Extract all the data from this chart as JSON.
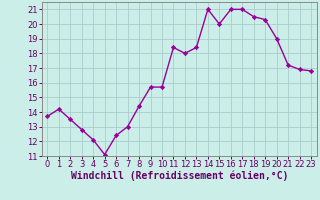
{
  "x": [
    0,
    1,
    2,
    3,
    4,
    5,
    6,
    7,
    8,
    9,
    10,
    11,
    12,
    13,
    14,
    15,
    16,
    17,
    18,
    19,
    20,
    21,
    22,
    23
  ],
  "y": [
    13.7,
    14.2,
    13.5,
    12.8,
    12.1,
    11.1,
    12.4,
    13.0,
    14.4,
    15.7,
    15.7,
    18.4,
    18.0,
    18.4,
    21.0,
    20.0,
    21.0,
    21.0,
    20.5,
    20.3,
    19.0,
    17.2,
    16.9,
    16.8
  ],
  "line_color": "#990099",
  "marker": "D",
  "marker_size": 2.2,
  "xlabel": "Windchill (Refroidissement éolien,°C)",
  "xlabel_fontsize": 7,
  "ylim": [
    11,
    21.5
  ],
  "xlim": [
    -0.5,
    23.5
  ],
  "yticks": [
    11,
    12,
    13,
    14,
    15,
    16,
    17,
    18,
    19,
    20,
    21
  ],
  "xticks": [
    0,
    1,
    2,
    3,
    4,
    5,
    6,
    7,
    8,
    9,
    10,
    11,
    12,
    13,
    14,
    15,
    16,
    17,
    18,
    19,
    20,
    21,
    22,
    23
  ],
  "grid_color": "#aacccc",
  "bg_color": "#cceee8",
  "tick_fontsize": 6,
  "line_width": 1.0
}
